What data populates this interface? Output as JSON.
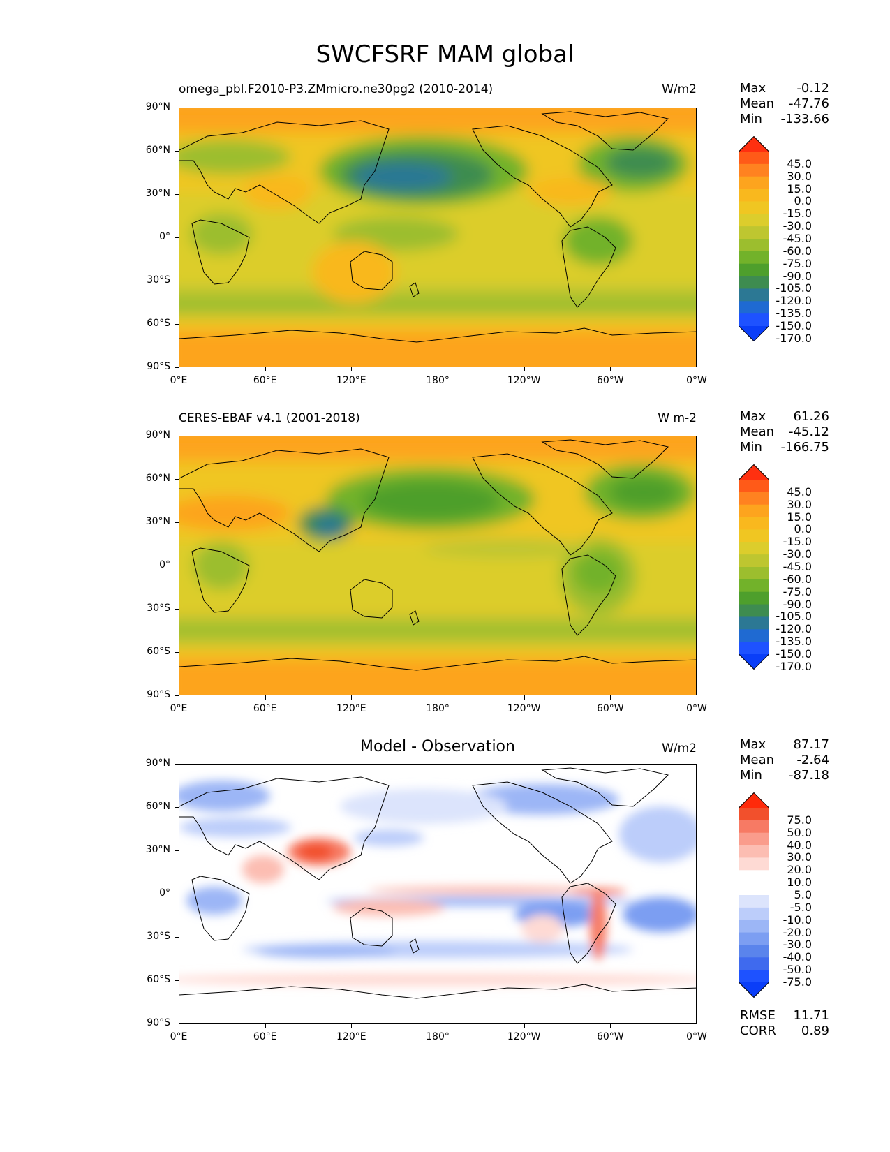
{
  "figure_title": "SWCFSRF MAM global",
  "axes": {
    "lat_labels": [
      "90°N",
      "60°N",
      "30°N",
      "0°",
      "30°S",
      "60°S",
      "90°S"
    ],
    "lon_labels": [
      "0°E",
      "60°E",
      "120°E",
      "180°",
      "120°W",
      "60°W",
      "0°W"
    ]
  },
  "panels": [
    {
      "title_left": "omega_pbl.F2010-P3.ZMmicro.ne30pg2 (2010-2014)",
      "units": "W/m2",
      "stats": {
        "max_label": "Max",
        "max": "-0.12",
        "mean_label": "Mean",
        "mean": "-47.76",
        "min_label": "Min",
        "min": "-133.66"
      },
      "colorbar_ticks": [
        "45.0",
        "30.0",
        "15.0",
        "0.0",
        "-15.0",
        "-30.0",
        "-45.0",
        "-60.0",
        "-75.0",
        "-90.0",
        "-105.0",
        "-120.0",
        "-135.0",
        "-150.0",
        "-170.0"
      ]
    },
    {
      "title_left": "CERES-EBAF v4.1 (2001-2018)",
      "units": "W m-2",
      "stats": {
        "max_label": "Max",
        "max": "61.26",
        "mean_label": "Mean",
        "mean": "-45.12",
        "min_label": "Min",
        "min": "-166.75"
      },
      "colorbar_ticks": [
        "45.0",
        "30.0",
        "15.0",
        "0.0",
        "-15.0",
        "-30.0",
        "-45.0",
        "-60.0",
        "-75.0",
        "-90.0",
        "-105.0",
        "-120.0",
        "-135.0",
        "-150.0",
        "-170.0"
      ]
    },
    {
      "title_center": "Model - Observation",
      "units": "W/m2",
      "stats": {
        "max_label": "Max",
        "max": "87.17",
        "mean_label": "Mean",
        "mean": "-2.64",
        "min_label": "Min",
        "min": "-87.18"
      },
      "colorbar_ticks": [
        "75.0",
        "50.0",
        "40.0",
        "30.0",
        "20.0",
        "10.0",
        "5.0",
        "-5.0",
        "-10.0",
        "-20.0",
        "-30.0",
        "-40.0",
        "-50.0",
        "-75.0"
      ],
      "rmse_label": "RMSE",
      "rmse": "11.71",
      "corr_label": "CORR",
      "corr": "0.89"
    }
  ],
  "colors": {
    "abs_scale": [
      "#ff3010",
      "#ff5a18",
      "#ff8220",
      "#fda41e",
      "#f9b81e",
      "#f0c622",
      "#dccd2c",
      "#bec630",
      "#9cbe2e",
      "#72b22a",
      "#4e9f2c",
      "#3e8c50",
      "#2c7894",
      "#1f6ad2",
      "#1e52ff",
      "#0a3ef8"
    ],
    "diff_scale": [
      "#ff2a0a",
      "#f2502c",
      "#f77a64",
      "#fa9c8c",
      "#fcbdb2",
      "#fedad4",
      "#ffffff",
      "#ffffff",
      "#dce4fc",
      "#bccdfa",
      "#9cb6f6",
      "#7c9ef2",
      "#5a84ec",
      "#3f6aee",
      "#1e52ff",
      "#0a3ef8"
    ]
  },
  "chart_data": [
    {
      "type": "heatmap",
      "title": "omega_pbl.F2010-P3.ZMmicro.ne30pg2 (2010-2014)",
      "units": "W/m2",
      "projection": "equirectangular",
      "xlim": [
        0,
        360
      ],
      "ylim": [
        -90,
        90
      ],
      "colorbar_levels": [
        45,
        30,
        15,
        0,
        -15,
        -30,
        -45,
        -60,
        -75,
        -90,
        -105,
        -120,
        -135,
        -150,
        -170
      ],
      "max": -0.12,
      "mean": -47.76,
      "min": -133.66,
      "regions": [
        {
          "lat": [
            60,
            90
          ],
          "lon": [
            0,
            360
          ],
          "value": -20
        },
        {
          "lat": [
            35,
            60
          ],
          "lon": [
            135,
            215
          ],
          "value": -95
        },
        {
          "lat": [
            40,
            55
          ],
          "lon": [
            145,
            190
          ],
          "value": -125
        },
        {
          "lat": [
            40,
            65
          ],
          "lon": [
            300,
            345
          ],
          "value": -95
        },
        {
          "lat": [
            -60,
            -40
          ],
          "lon": [
            0,
            360
          ],
          "value": -65
        },
        {
          "lat": [
            -15,
            10
          ],
          "lon": [
            280,
            320
          ],
          "value": -90
        },
        {
          "lat": [
            -5,
            10
          ],
          "lon": [
            10,
            30
          ],
          "value": -85
        },
        {
          "lat": [
            -35,
            0
          ],
          "lon": [
            115,
            150
          ],
          "value": -30
        },
        {
          "lat": [
            -90,
            -65
          ],
          "lon": [
            0,
            360
          ],
          "value": -15
        }
      ]
    },
    {
      "type": "heatmap",
      "title": "CERES-EBAF v4.1 (2001-2018)",
      "units": "W m-2",
      "projection": "equirectangular",
      "xlim": [
        0,
        360
      ],
      "ylim": [
        -90,
        90
      ],
      "colorbar_levels": [
        45,
        30,
        15,
        0,
        -15,
        -30,
        -45,
        -60,
        -75,
        -90,
        -105,
        -120,
        -135,
        -150,
        -170
      ],
      "max": 61.26,
      "mean": -45.12,
      "min": -166.75,
      "regions": [
        {
          "lat": [
            60,
            90
          ],
          "lon": [
            0,
            360
          ],
          "value": -20
        },
        {
          "lat": [
            35,
            60
          ],
          "lon": [
            140,
            220
          ],
          "value": -100
        },
        {
          "lat": [
            20,
            40
          ],
          "lon": [
            95,
            125
          ],
          "value": -120
        },
        {
          "lat": [
            40,
            65
          ],
          "lon": [
            300,
            345
          ],
          "value": -95
        },
        {
          "lat": [
            -60,
            -40
          ],
          "lon": [
            0,
            360
          ],
          "value": -60
        },
        {
          "lat": [
            -20,
            10
          ],
          "lon": [
            280,
            320
          ],
          "value": -95
        },
        {
          "lat": [
            15,
            35
          ],
          "lon": [
            0,
            50
          ],
          "value": -10
        },
        {
          "lat": [
            -90,
            -65
          ],
          "lon": [
            0,
            360
          ],
          "value": -15
        }
      ]
    },
    {
      "type": "heatmap",
      "title": "Model - Observation",
      "units": "W/m2",
      "projection": "equirectangular",
      "xlim": [
        0,
        360
      ],
      "ylim": [
        -90,
        90
      ],
      "colorbar_levels": [
        75,
        50,
        40,
        30,
        20,
        10,
        5,
        -5,
        -10,
        -20,
        -30,
        -40,
        -50,
        -75
      ],
      "max": 87.17,
      "mean": -2.64,
      "min": -87.18,
      "rmse": 11.71,
      "corr": 0.89,
      "regions": [
        {
          "lat": [
            20,
            40
          ],
          "lon": [
            90,
            125
          ],
          "value": 40
        },
        {
          "lat": [
            0,
            8
          ],
          "lon": [
            150,
            280
          ],
          "value": 15
        },
        {
          "lat": [
            -5,
            2
          ],
          "lon": [
            130,
            290
          ],
          "value": -20
        },
        {
          "lat": [
            55,
            75
          ],
          "lon": [
            0,
            50
          ],
          "value": -25
        },
        {
          "lat": [
            50,
            75
          ],
          "lon": [
            190,
            290
          ],
          "value": -25
        },
        {
          "lat": [
            -55,
            -35
          ],
          "lon": [
            0,
            360
          ],
          "value": -15
        },
        {
          "lat": [
            -45,
            10
          ],
          "lon": [
            285,
            300
          ],
          "value": 45
        },
        {
          "lat": [
            -65,
            -55
          ],
          "lon": [
            0,
            360
          ],
          "value": 10
        }
      ]
    }
  ]
}
